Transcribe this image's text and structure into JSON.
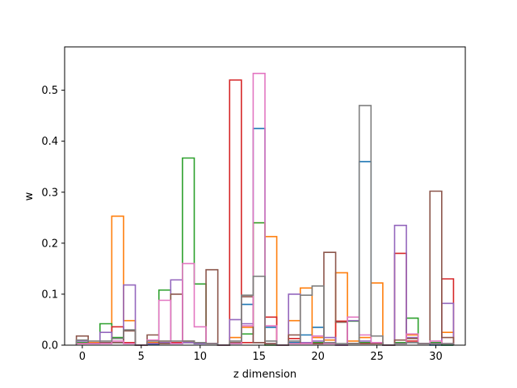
{
  "chart_data": {
    "type": "bar",
    "style": "step histograms (unfilled outlines), overlaid series",
    "title": "",
    "xlabel": "z dimension",
    "ylabel": "w",
    "xlim": [
      -1.5,
      32.5
    ],
    "ylim": [
      0,
      0.585
    ],
    "xticks": [
      0,
      5,
      10,
      15,
      20,
      25,
      30
    ],
    "yticks": [
      0.0,
      0.1,
      0.2,
      0.3,
      0.4,
      0.5
    ],
    "grid": false,
    "legend": "none",
    "bin_width": 1,
    "bins": [
      0,
      1,
      2,
      3,
      4,
      5,
      6,
      7,
      8,
      9,
      10,
      11,
      12,
      13,
      14,
      15,
      16,
      17,
      18,
      19,
      20,
      21,
      22,
      23,
      24,
      25,
      26,
      27,
      28,
      29,
      30,
      31
    ],
    "series": [
      {
        "color": "#1f77b4",
        "values": [
          0.003,
          0.003,
          0.005,
          0.005,
          0.005,
          0.0,
          0.002,
          0.005,
          0.003,
          0.005,
          0.003,
          0.003,
          0.0,
          0.003,
          0.08,
          0.425,
          0.035,
          0.0,
          0.005,
          0.02,
          0.035,
          0.003,
          0.0,
          0.003,
          0.36,
          0.003,
          0.0,
          0.003,
          0.005,
          0.003,
          0.0,
          0.0
        ]
      },
      {
        "color": "#ff7f0e",
        "values": [
          0.003,
          0.005,
          0.005,
          0.253,
          0.048,
          0.0,
          0.005,
          0.008,
          0.005,
          0.008,
          0.005,
          0.003,
          0.0,
          0.015,
          0.035,
          0.24,
          0.213,
          0.0,
          0.048,
          0.112,
          0.015,
          0.01,
          0.142,
          0.008,
          0.015,
          0.122,
          0.0,
          0.005,
          0.02,
          0.003,
          0.003,
          0.025
        ]
      },
      {
        "color": "#2ca02c",
        "values": [
          0.005,
          0.003,
          0.042,
          0.015,
          0.005,
          0.0,
          0.003,
          0.108,
          0.005,
          0.367,
          0.12,
          0.003,
          0.0,
          0.003,
          0.022,
          0.24,
          0.0,
          0.0,
          0.003,
          0.005,
          0.005,
          0.003,
          0.0,
          0.047,
          0.005,
          0.005,
          0.0,
          0.005,
          0.053,
          0.003,
          0.005,
          0.0
        ]
      },
      {
        "color": "#d62728",
        "values": [
          0.003,
          0.003,
          0.005,
          0.036,
          0.005,
          0.0,
          0.003,
          0.005,
          0.005,
          0.005,
          0.005,
          0.003,
          0.0,
          0.52,
          0.005,
          0.005,
          0.055,
          0.0,
          0.013,
          0.005,
          0.003,
          0.005,
          0.047,
          0.003,
          0.003,
          0.003,
          0.0,
          0.18,
          0.008,
          0.003,
          0.003,
          0.13
        ]
      },
      {
        "color": "#9467bd",
        "values": [
          0.008,
          0.003,
          0.025,
          0.005,
          0.118,
          0.0,
          0.003,
          0.005,
          0.128,
          0.005,
          0.003,
          0.003,
          0.0,
          0.05,
          0.042,
          0.005,
          0.003,
          0.0,
          0.1,
          0.005,
          0.008,
          0.015,
          0.0,
          0.048,
          0.008,
          0.005,
          0.0,
          0.235,
          0.015,
          0.003,
          0.003,
          0.082
        ]
      },
      {
        "color": "#8c564b",
        "values": [
          0.018,
          0.003,
          0.005,
          0.005,
          0.028,
          0.0,
          0.02,
          0.003,
          0.1,
          0.008,
          0.005,
          0.148,
          0.0,
          0.005,
          0.095,
          0.005,
          0.003,
          0.0,
          0.02,
          0.003,
          0.003,
          0.182,
          0.045,
          0.003,
          0.003,
          0.003,
          0.0,
          0.01,
          0.013,
          0.003,
          0.302,
          0.015
        ]
      },
      {
        "color": "#e377c2",
        "values": [
          0.003,
          0.003,
          0.003,
          0.008,
          0.003,
          0.0,
          0.01,
          0.088,
          0.003,
          0.16,
          0.036,
          0.003,
          0.0,
          0.003,
          0.038,
          0.533,
          0.038,
          0.0,
          0.003,
          0.003,
          0.018,
          0.003,
          0.0,
          0.055,
          0.02,
          0.005,
          0.0,
          0.003,
          0.022,
          0.003,
          0.008,
          0.003
        ]
      },
      {
        "color": "#7f7f7f",
        "values": [
          0.01,
          0.008,
          0.008,
          0.013,
          0.03,
          0.0,
          0.008,
          0.008,
          0.008,
          0.008,
          0.005,
          0.003,
          0.0,
          0.008,
          0.098,
          0.135,
          0.008,
          0.0,
          0.008,
          0.098,
          0.116,
          0.005,
          0.003,
          0.003,
          0.47,
          0.018,
          0.0,
          0.003,
          0.005,
          0.003,
          0.003,
          0.003
        ]
      }
    ]
  }
}
